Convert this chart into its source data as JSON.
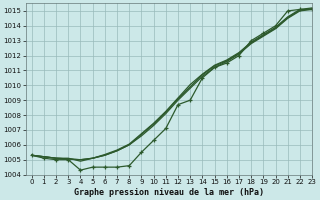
{
  "title": "Graphe pression niveau de la mer (hPa)",
  "background_color": "#cce8e8",
  "grid_color": "#99bbbb",
  "line_color": "#2d5a2d",
  "xlim": [
    -0.5,
    23
  ],
  "ylim": [
    1004,
    1015.5
  ],
  "yticks": [
    1004,
    1005,
    1006,
    1007,
    1008,
    1009,
    1010,
    1011,
    1012,
    1013,
    1014,
    1015
  ],
  "xticks": [
    0,
    1,
    2,
    3,
    4,
    5,
    6,
    7,
    8,
    9,
    10,
    11,
    12,
    13,
    14,
    15,
    16,
    17,
    18,
    19,
    20,
    21,
    22,
    23
  ],
  "line_main": [
    1005.3,
    1005.1,
    1005.0,
    1005.0,
    1004.3,
    1004.5,
    1004.5,
    1004.5,
    1004.6,
    1005.5,
    1006.3,
    1007.1,
    1008.7,
    1009.0,
    1010.5,
    1011.2,
    1011.5,
    1012.0,
    1013.0,
    1013.5,
    1014.0,
    1015.0,
    1015.1,
    1015.1
  ],
  "line_smooth1": [
    1005.3,
    1005.2,
    1005.1,
    1005.1,
    1004.9,
    1005.1,
    1005.3,
    1005.6,
    1006.0,
    1006.6,
    1007.3,
    1008.1,
    1009.0,
    1009.8,
    1010.6,
    1011.2,
    1011.6,
    1012.1,
    1012.8,
    1013.3,
    1013.8,
    1014.5,
    1015.0,
    1015.1
  ],
  "line_smooth2": [
    1005.3,
    1005.2,
    1005.1,
    1005.05,
    1005.0,
    1005.1,
    1005.3,
    1005.6,
    1006.0,
    1006.7,
    1007.4,
    1008.2,
    1009.1,
    1009.9,
    1010.7,
    1011.3,
    1011.65,
    1012.15,
    1012.85,
    1013.35,
    1013.85,
    1014.55,
    1015.05,
    1015.15
  ],
  "line_smooth3": [
    1005.3,
    1005.2,
    1005.1,
    1005.05,
    1005.0,
    1005.1,
    1005.35,
    1005.65,
    1006.05,
    1006.75,
    1007.45,
    1008.25,
    1009.15,
    1010.05,
    1010.75,
    1011.35,
    1011.7,
    1012.2,
    1012.9,
    1013.4,
    1013.9,
    1014.6,
    1015.1,
    1015.2
  ]
}
